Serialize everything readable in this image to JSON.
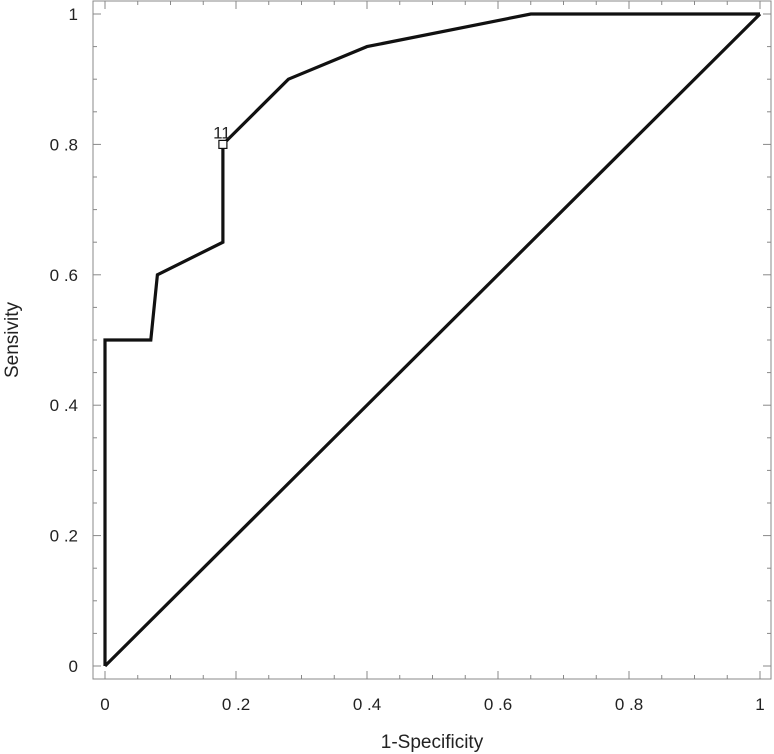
{
  "chart_data": {
    "type": "line",
    "xlabel": "1-Specificity",
    "ylabel": "Sensivity",
    "xlim": [
      0,
      1
    ],
    "ylim": [
      0,
      1
    ],
    "x_tick_labels": [
      "0",
      "0 .2",
      "0 .4",
      "0 .6",
      "0 .8",
      "1"
    ],
    "x_tick_values": [
      0,
      0.2,
      0.4,
      0.6,
      0.8,
      1
    ],
    "y_tick_labels": [
      "0",
      "0 .2",
      "0 .4",
      "0 .6",
      "0 .8",
      "1"
    ],
    "y_tick_values": [
      0,
      0.2,
      0.4,
      0.6,
      0.8,
      1
    ],
    "grid": false,
    "series": [
      {
        "x": [
          0,
          0,
          0.07,
          0.08,
          0.18,
          0.18,
          0.28,
          0.4,
          0.65,
          1
        ],
        "y": [
          0,
          0.5,
          0.5,
          0.6,
          0.65,
          0.8,
          0.9,
          0.95,
          1,
          1
        ]
      },
      {
        "x": [
          0,
          1
        ],
        "y": [
          0,
          1
        ]
      }
    ],
    "annotations": [
      {
        "text": "11",
        "x": 0.18,
        "y": 0.8,
        "marker": "square"
      }
    ]
  }
}
